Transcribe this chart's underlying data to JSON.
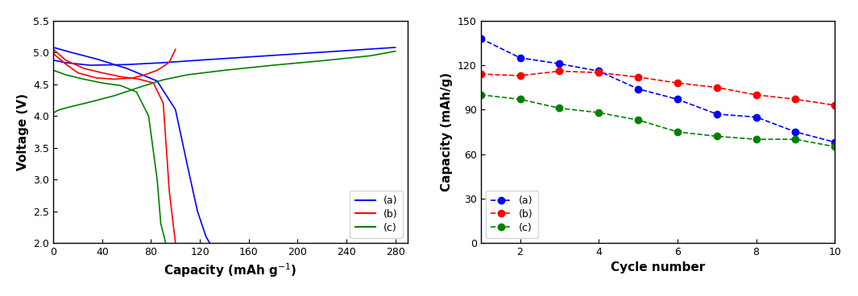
{
  "left_chart": {
    "title": "",
    "xlabel": "Capacity (mAh g$^{-1}$)",
    "ylabel": "Voltage (V)",
    "xlim": [
      0,
      290
    ],
    "ylim": [
      2.0,
      5.5
    ],
    "xticks": [
      0,
      40,
      80,
      120,
      160,
      200,
      240,
      280
    ],
    "yticks": [
      2.0,
      2.5,
      3.0,
      3.5,
      4.0,
      4.5,
      5.0,
      5.5
    ],
    "legend_labels": [
      "(a)",
      "(b)",
      "(c)"
    ],
    "colors": [
      "#0000ff",
      "#ff0000",
      "#008000"
    ],
    "charge_a": {
      "x": [
        0,
        20,
        50,
        80,
        100,
        120,
        140,
        160,
        200,
        240,
        280
      ],
      "y": [
        4.9,
        4.85,
        4.8,
        4.82,
        4.85,
        4.9,
        4.95,
        4.98,
        5.02,
        5.05,
        5.1
      ]
    },
    "discharge_a": {
      "x": [
        0,
        20,
        50,
        80,
        100,
        110,
        120,
        125,
        128
      ],
      "y": [
        5.1,
        5.0,
        4.9,
        4.7,
        4.4,
        3.5,
        2.8,
        2.2,
        2.0
      ]
    },
    "charge_b": {
      "x": [
        0,
        10,
        20,
        40,
        60,
        80,
        90,
        95,
        100
      ],
      "y": [
        5.0,
        4.9,
        4.75,
        4.65,
        4.6,
        4.7,
        4.8,
        4.9,
        5.05
      ]
    },
    "discharge_b": {
      "x": [
        0,
        5,
        15,
        30,
        50,
        70,
        85,
        95,
        100
      ],
      "y": [
        5.0,
        4.85,
        4.7,
        4.6,
        4.55,
        4.5,
        4.3,
        3.0,
        2.0
      ]
    },
    "charge_c": {
      "x": [
        0,
        5,
        10,
        20,
        30,
        40,
        50,
        60,
        70,
        80,
        90,
        100,
        120,
        140,
        160,
        200,
        240,
        280
      ],
      "y": [
        4.05,
        4.1,
        4.15,
        4.2,
        4.25,
        4.3,
        4.4,
        4.55,
        4.65,
        4.7,
        4.72,
        4.75,
        4.82,
        4.88,
        4.93,
        4.97,
        5.0,
        5.02
      ]
    },
    "discharge_c": {
      "x": [
        0,
        20,
        40,
        60,
        70,
        80,
        85,
        90,
        93
      ],
      "y": [
        4.72,
        4.65,
        4.55,
        4.5,
        4.45,
        4.2,
        3.5,
        2.5,
        2.0
      ]
    }
  },
  "right_chart": {
    "title": "",
    "xlabel": "Cycle number",
    "ylabel": "Capacity (mAh/g)",
    "xlim": [
      1,
      10
    ],
    "ylim": [
      0,
      150
    ],
    "xticks": [
      2,
      4,
      6,
      8,
      10
    ],
    "yticks": [
      0,
      30,
      60,
      90,
      120,
      150
    ],
    "legend_labels": [
      "(a)",
      "(b)",
      "(c)"
    ],
    "colors": [
      "#0000ff",
      "#ff0000",
      "#008000"
    ],
    "data_a": {
      "x": [
        1,
        2,
        3,
        4,
        5,
        6,
        7,
        8,
        9,
        10
      ],
      "y": [
        138,
        125,
        121,
        116,
        104,
        97,
        87,
        85,
        75,
        68
      ]
    },
    "data_b": {
      "x": [
        1,
        2,
        3,
        4,
        5,
        6,
        7,
        8,
        9,
        10
      ],
      "y": [
        114,
        113,
        116,
        115,
        112,
        108,
        105,
        100,
        97,
        93
      ]
    },
    "data_c": {
      "x": [
        1,
        2,
        3,
        4,
        5,
        6,
        7,
        8,
        9,
        10
      ],
      "y": [
        100,
        97,
        91,
        88,
        83,
        75,
        72,
        70,
        70,
        65
      ]
    }
  }
}
